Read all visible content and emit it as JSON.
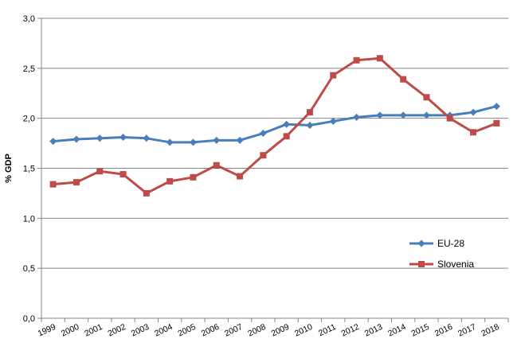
{
  "chart_data": {
    "type": "line",
    "title": "",
    "xlabel": "",
    "ylabel": "% GDP",
    "ylim": [
      0,
      3
    ],
    "ytick_labels": [
      "0,0",
      "0,5",
      "1,0",
      "1,5",
      "2,0",
      "2,5",
      "3,0"
    ],
    "categories": [
      "1999",
      "2000",
      "2001",
      "2002",
      "2003",
      "2004",
      "2005",
      "2006",
      "2007",
      "2008",
      "2009",
      "2010",
      "2011",
      "2012",
      "2013",
      "2014",
      "2015",
      "2016",
      "2017",
      "2018"
    ],
    "grid": true,
    "legend_position": "right",
    "series": [
      {
        "name": "EU-28",
        "color": "#4a7ebb",
        "marker": "diamond",
        "values": [
          1.77,
          1.79,
          1.8,
          1.81,
          1.8,
          1.76,
          1.76,
          1.78,
          1.78,
          1.85,
          1.94,
          1.93,
          1.97,
          2.01,
          2.03,
          2.03,
          2.03,
          2.03,
          2.06,
          2.12
        ]
      },
      {
        "name": "Slovenia",
        "color": "#be4b48",
        "marker": "square",
        "values": [
          1.34,
          1.36,
          1.47,
          1.44,
          1.25,
          1.37,
          1.41,
          1.53,
          1.42,
          1.63,
          1.82,
          2.06,
          2.43,
          2.58,
          2.6,
          2.39,
          2.21,
          2.0,
          1.86,
          1.95
        ]
      }
    ]
  }
}
